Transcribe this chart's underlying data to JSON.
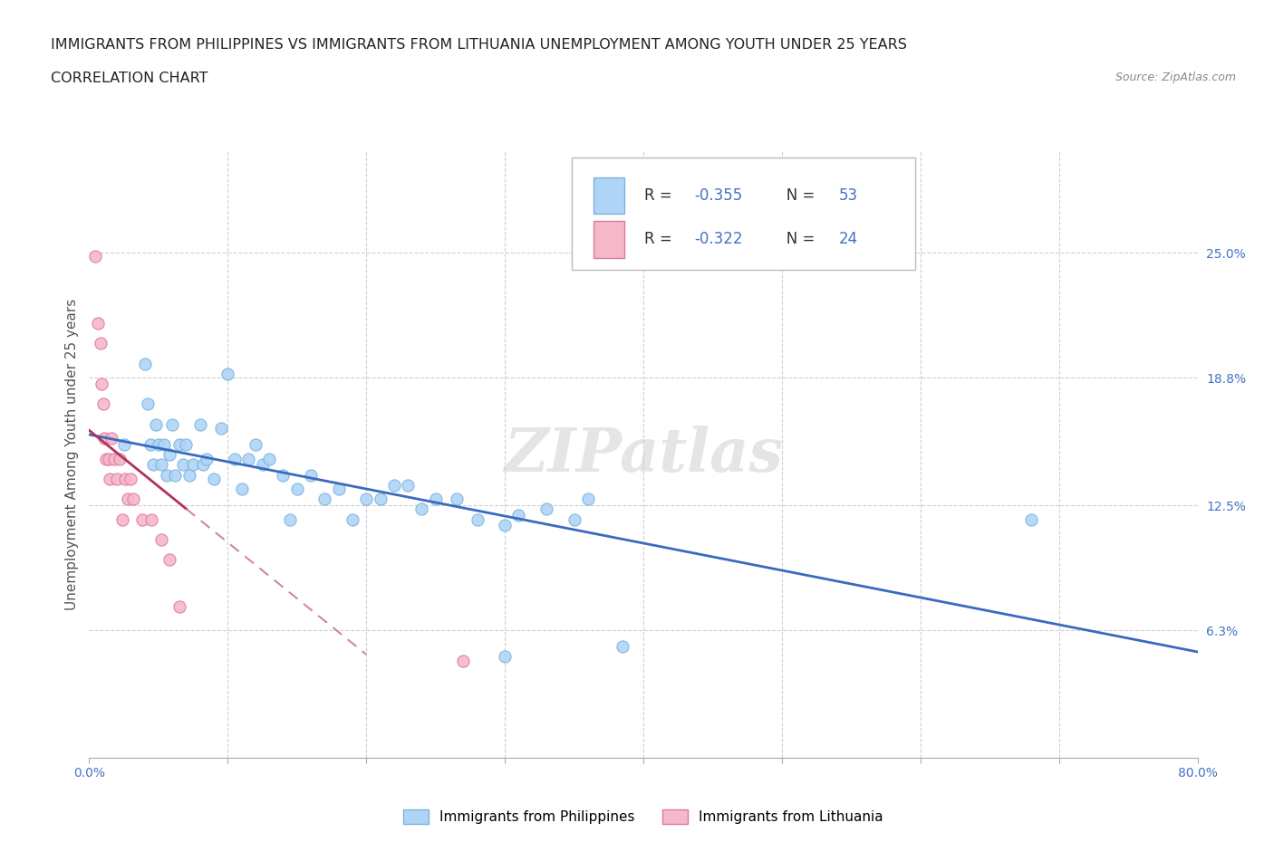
{
  "title_line1": "IMMIGRANTS FROM PHILIPPINES VS IMMIGRANTS FROM LITHUANIA UNEMPLOYMENT AMONG YOUTH UNDER 25 YEARS",
  "title_line2": "CORRELATION CHART",
  "source_text": "Source: ZipAtlas.com",
  "ylabel": "Unemployment Among Youth under 25 years",
  "xlim": [
    0.0,
    0.8
  ],
  "ylim": [
    0.0,
    0.3
  ],
  "xticks": [
    0.0,
    0.1,
    0.2,
    0.3,
    0.4,
    0.5,
    0.6,
    0.7,
    0.8
  ],
  "xticklabels": [
    "0.0%",
    "",
    "",
    "",
    "",
    "",
    "",
    "",
    "80.0%"
  ],
  "ytick_positions": [
    0.0,
    0.063,
    0.125,
    0.188,
    0.25
  ],
  "ytick_labels": [
    "",
    "6.3%",
    "12.5%",
    "18.8%",
    "25.0%"
  ],
  "philippines_x": [
    0.025,
    0.04,
    0.042,
    0.044,
    0.046,
    0.048,
    0.05,
    0.052,
    0.054,
    0.056,
    0.058,
    0.06,
    0.062,
    0.065,
    0.068,
    0.07,
    0.072,
    0.075,
    0.08,
    0.082,
    0.085,
    0.09,
    0.095,
    0.1,
    0.105,
    0.11,
    0.115,
    0.12,
    0.125,
    0.13,
    0.14,
    0.145,
    0.15,
    0.16,
    0.17,
    0.18,
    0.19,
    0.2,
    0.21,
    0.22,
    0.23,
    0.24,
    0.25,
    0.265,
    0.28,
    0.3,
    0.31,
    0.33,
    0.35,
    0.36,
    0.385,
    0.68,
    0.3
  ],
  "philippines_y": [
    0.155,
    0.195,
    0.175,
    0.155,
    0.145,
    0.165,
    0.155,
    0.145,
    0.155,
    0.14,
    0.15,
    0.165,
    0.14,
    0.155,
    0.145,
    0.155,
    0.14,
    0.145,
    0.165,
    0.145,
    0.148,
    0.138,
    0.163,
    0.19,
    0.148,
    0.133,
    0.148,
    0.155,
    0.145,
    0.148,
    0.14,
    0.118,
    0.133,
    0.14,
    0.128,
    0.133,
    0.118,
    0.128,
    0.128,
    0.135,
    0.135,
    0.123,
    0.128,
    0.128,
    0.118,
    0.115,
    0.12,
    0.123,
    0.118,
    0.128,
    0.055,
    0.118,
    0.05
  ],
  "lithuania_x": [
    0.004,
    0.006,
    0.008,
    0.009,
    0.01,
    0.011,
    0.012,
    0.014,
    0.015,
    0.016,
    0.018,
    0.02,
    0.022,
    0.024,
    0.026,
    0.028,
    0.03,
    0.032,
    0.038,
    0.045,
    0.052,
    0.058,
    0.065,
    0.27
  ],
  "lithuania_y": [
    0.248,
    0.215,
    0.205,
    0.185,
    0.175,
    0.158,
    0.148,
    0.148,
    0.138,
    0.158,
    0.148,
    0.138,
    0.148,
    0.118,
    0.138,
    0.128,
    0.138,
    0.128,
    0.118,
    0.118,
    0.108,
    0.098,
    0.075,
    0.048
  ],
  "philippines_color": "#afd4f5",
  "philippines_edge": "#7ab3e0",
  "lithuania_color": "#f5b8cb",
  "lithuania_edge": "#e07898",
  "trend_philippines_color": "#3a6abf",
  "trend_lithuania_solid_color": "#b03060",
  "trend_lithuania_dash_color": "#d08898",
  "r_philippines": "-0.355",
  "n_philippines": "53",
  "r_lithuania": "-0.322",
  "n_lithuania": "24",
  "legend_label_philippines": "Immigrants from Philippines",
  "legend_label_lithuania": "Immigrants from Lithuania",
  "watermark": "ZIPatlas",
  "background_color": "#ffffff",
  "grid_color": "#d0d0d0",
  "title_fontsize": 11.5,
  "subtitle_fontsize": 11.5,
  "source_fontsize": 9,
  "axis_label_fontsize": 11,
  "tick_fontsize": 10,
  "scatter_size": 90,
  "legend_value_color": "#4472c4"
}
